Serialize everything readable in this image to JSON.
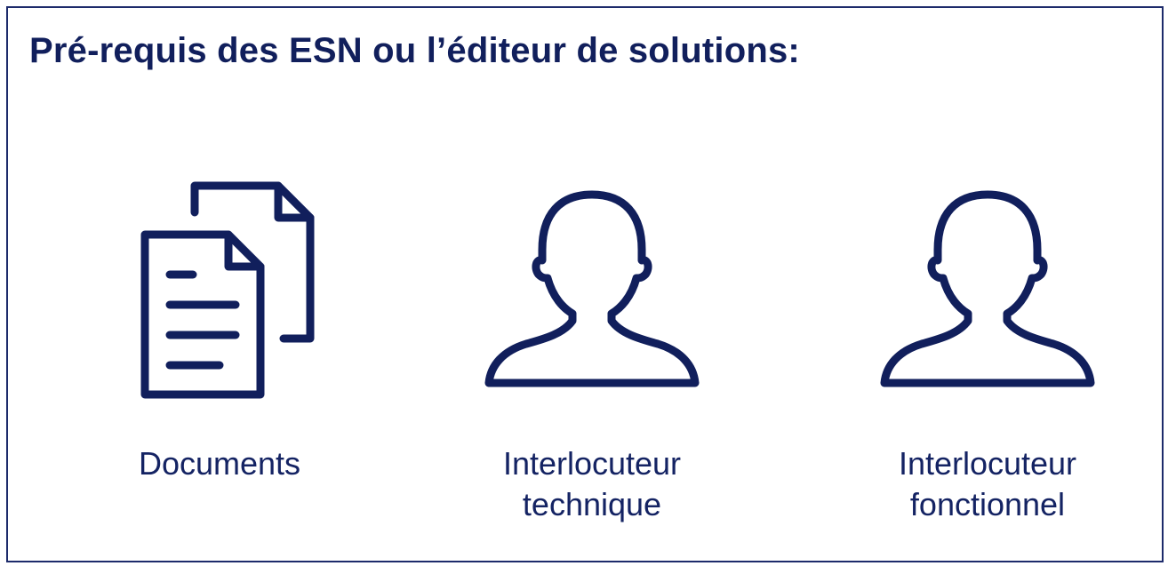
{
  "title": "Pré-requis des ESN ou l’éditeur de solutions:",
  "colors": {
    "primary": "#111f5c",
    "frame": "#1d2b6b",
    "background": "#ffffff"
  },
  "items": [
    {
      "icon": "documents-icon",
      "label_lines": [
        "Documents"
      ]
    },
    {
      "icon": "person-icon",
      "label_lines": [
        "Interlocuteur",
        "technique"
      ]
    },
    {
      "icon": "person-icon",
      "label_lines": [
        "Interlocuteur",
        "fonctionnel"
      ]
    }
  ]
}
